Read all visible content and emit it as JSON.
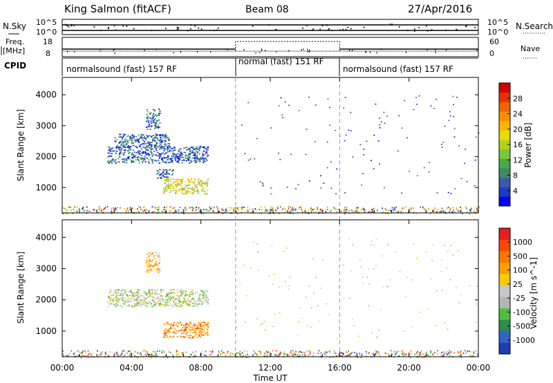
{
  "header": {
    "station": "King Salmon (fitACF)",
    "beam": "Beam 08",
    "date": "27/Apr/2016"
  },
  "summary_panels": {
    "nsky_label": "N.Sky",
    "nsearch_label": "N.Search",
    "freq_label_1": "Freq.",
    "freq_label_2": "[MHz]",
    "nave_label": "Nave",
    "cpid_label": "CPID",
    "nsky_ticks": [
      "10^5",
      "10^0"
    ],
    "nsearch_ticks": [
      "10^5",
      "10^0"
    ],
    "freq_ticks": [
      "18",
      "8"
    ],
    "nave_ticks": [
      "60",
      "0"
    ]
  },
  "cpid_segments": [
    {
      "label": "normalsound (fast) 157 RF",
      "start_h": 0,
      "end_h": 10
    },
    {
      "label": "normal (fast) 151 RF",
      "start_h": 10,
      "end_h": 16
    },
    {
      "label": "normalsound (fast) 157 RF",
      "start_h": 16,
      "end_h": 24
    }
  ],
  "x_axis": {
    "label": "Time UT",
    "ticks": [
      "00:00",
      "04:00",
      "08:00",
      "12:00",
      "16:00",
      "20:00",
      "00:00"
    ],
    "range_hours": [
      0,
      24
    ]
  },
  "chart_data": [
    {
      "type": "heatmap",
      "title": "",
      "xlabel": "Time UT",
      "ylabel": "Slant Range [km]",
      "ylim": [
        180,
        4560
      ],
      "yticks": [
        "1000",
        "2000",
        "3000",
        "4000"
      ],
      "colorbar": {
        "label": "Power [dB]",
        "range": [
          0,
          32
        ],
        "ticks": [
          "4",
          "8",
          "12",
          "16",
          "20",
          "24",
          "28"
        ],
        "colors": [
          "#0000ff",
          "#1c3cc8",
          "#3c5ab4",
          "#3c8c64",
          "#46aa46",
          "#78c83c",
          "#b4d214",
          "#e6dc00",
          "#ffb400",
          "#ff8c00",
          "#f06400",
          "#e63200",
          "#d20000"
        ]
      },
      "regions": [
        {
          "name": "echo-band-2000km",
          "t": [
            2.6,
            8.4
          ],
          "r": [
            1800,
            2350
          ],
          "level": 0.18
        },
        {
          "name": "echo-band-2500km",
          "t": [
            3.0,
            6.2
          ],
          "r": [
            2300,
            2750
          ],
          "level": 0.2
        },
        {
          "name": "echo-band-3200km",
          "t": [
            4.8,
            5.6
          ],
          "r": [
            2900,
            3550
          ],
          "level": 0.2
        },
        {
          "name": "echo-patch-1000km",
          "t": [
            5.8,
            8.4
          ],
          "r": [
            800,
            1300
          ],
          "level": 0.55
        },
        {
          "name": "echo-patch-1400km",
          "t": [
            5.4,
            6.4
          ],
          "r": [
            1300,
            1600
          ],
          "level": 0.2
        }
      ]
    },
    {
      "type": "heatmap",
      "title": "",
      "xlabel": "Time UT",
      "ylabel": "Slant Range [km]",
      "ylim": [
        180,
        4560
      ],
      "yticks": [
        "1000",
        "2000",
        "3000",
        "4000"
      ],
      "colorbar": {
        "label": "Velocity [m s^-1]",
        "ticks": [
          "1000",
          "500",
          "100",
          "25",
          "-25",
          "-100",
          "-500",
          "-1000"
        ],
        "colors": [
          "#1e3cb4",
          "#3264c8",
          "#2d8c50",
          "#50be3c",
          "#b4b4b4",
          "#c8c8c8",
          "#ffc800",
          "#ffa000",
          "#ff7800",
          "#ff4600",
          "#e61e1e"
        ]
      },
      "regions": [
        {
          "name": "vel-band-2000km",
          "t": [
            2.6,
            8.4
          ],
          "r": [
            1800,
            2350
          ],
          "level": 0.45
        },
        {
          "name": "vel-band-3200km",
          "t": [
            4.8,
            5.6
          ],
          "r": [
            2900,
            3550
          ],
          "level": 0.65
        },
        {
          "name": "vel-patch-1000km",
          "t": [
            5.8,
            8.4
          ],
          "r": [
            800,
            1300
          ],
          "level": 0.72
        }
      ]
    }
  ]
}
